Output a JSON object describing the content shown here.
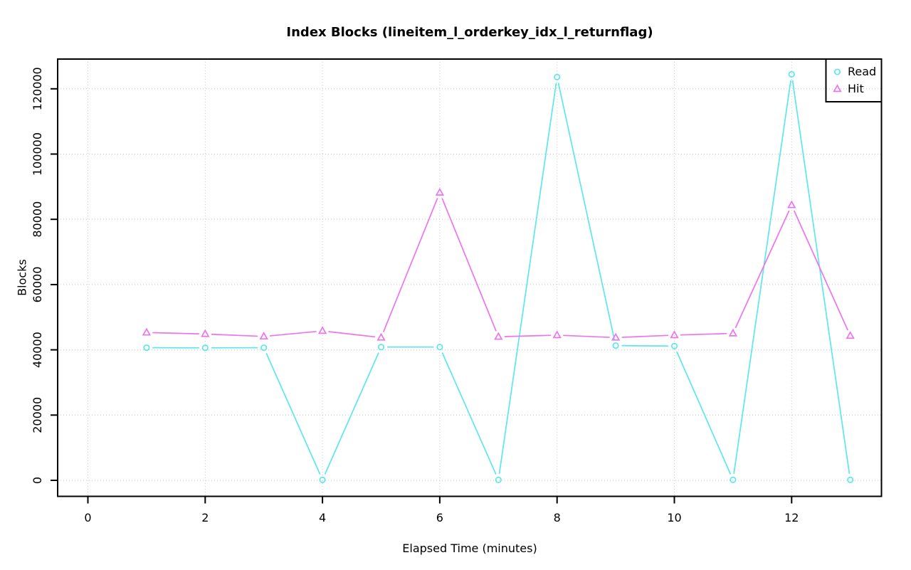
{
  "title": "Index Blocks (lineitem_l_orderkey_idx_l_returnflag)",
  "xlabel": "Elapsed Time (minutes)",
  "ylabel": "Blocks",
  "chart_data": {
    "type": "line",
    "x": [
      1,
      2,
      3,
      4,
      5,
      6,
      7,
      8,
      9,
      10,
      11,
      12,
      13
    ],
    "series": [
      {
        "name": "Read",
        "marker": "circle",
        "color": "#5ce7ed",
        "values": [
          40650,
          40600,
          40650,
          150,
          40850,
          40850,
          150,
          123600,
          41300,
          41150,
          150,
          124450,
          150
        ]
      },
      {
        "name": "Hit",
        "marker": "triangle",
        "color": "#ee74ee",
        "values": [
          45300,
          44850,
          44100,
          45800,
          43750,
          88200,
          44000,
          44500,
          43750,
          44500,
          45050,
          84350,
          44300
        ]
      }
    ],
    "xticks": [
      0,
      2,
      4,
      6,
      8,
      10,
      12
    ],
    "yticks": [
      0,
      20000,
      40000,
      60000,
      80000,
      100000,
      120000
    ],
    "xlim": [
      -0.52,
      13.53
    ],
    "ylim": [
      -4907,
      129114
    ],
    "grid_style": "dotted",
    "grid_color": "#c8c8c8",
    "legend_position": "topright",
    "legend": {
      "items": [
        {
          "label": "Read"
        },
        {
          "label": "Hit"
        }
      ]
    }
  }
}
